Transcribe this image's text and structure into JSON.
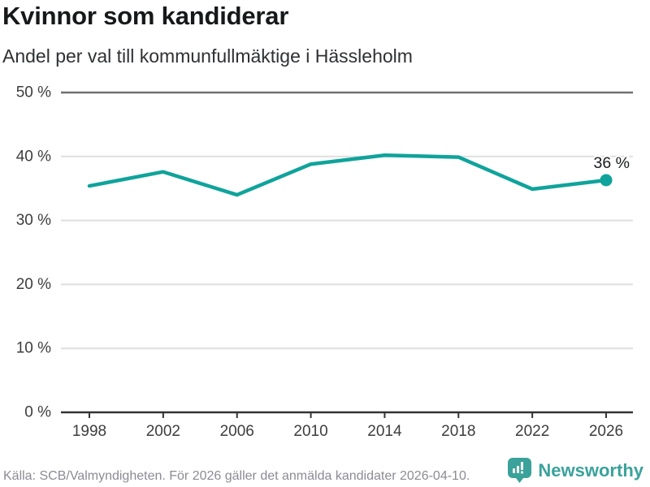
{
  "header": {
    "title": "Kvinnor som kandiderar",
    "subtitle": "Andel per val till kommunfullmäktige i Hässleholm"
  },
  "footer": {
    "source": "Källa: SCB/Valmyndigheten. För 2026 gäller det anmälda kandidater 2026-04-10.",
    "brand": "Newsworthy"
  },
  "colors": {
    "line": "#0fa39b",
    "point": "#0fa39b",
    "brand_teal": "#3aa29b",
    "grid_light": "#dfdfdf",
    "grid_top": "#6f6f6f",
    "axis": "#333333",
    "tick_text": "#3d3d3d",
    "label_text": "#191b1d"
  },
  "chart_data": {
    "type": "line",
    "x": [
      1998,
      2002,
      2006,
      2010,
      2014,
      2018,
      2022,
      2026
    ],
    "xtick_labels": [
      "1998",
      "2002",
      "2006",
      "2010",
      "2014",
      "2018",
      "2022",
      "2026"
    ],
    "values": [
      35.4,
      37.6,
      34.0,
      38.8,
      40.2,
      39.9,
      34.9,
      36.3
    ],
    "title": "Kvinnor som kandiderar",
    "subtitle": "Andel per val till kommunfullmäktige i Hässleholm",
    "ylim": [
      0,
      50
    ],
    "yticks": [
      0,
      10,
      20,
      30,
      40,
      50
    ],
    "ytick_labels": [
      "0 %",
      "10 %",
      "20 %",
      "30 %",
      "40 %",
      "50 %"
    ],
    "end_label": "36 %",
    "grid": true,
    "legend": false
  }
}
